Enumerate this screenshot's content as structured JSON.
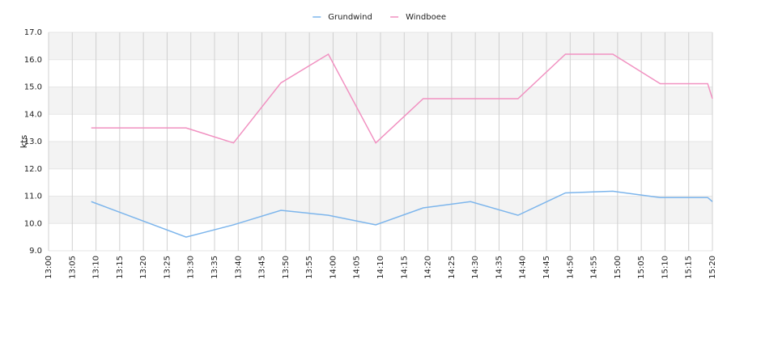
{
  "chart_data": {
    "type": "line",
    "ylabel": "kts",
    "x": [
      "13:09",
      "13:29",
      "13:39",
      "13:49",
      "13:59",
      "14:09",
      "14:19",
      "14:29",
      "14:39",
      "14:49",
      "14:59",
      "15:09",
      "15:19",
      "15:20"
    ],
    "series": [
      {
        "name": "Grundwind",
        "color": "#7cb5ec",
        "values": [
          10.8,
          9.5,
          9.95,
          10.48,
          10.3,
          9.95,
          10.57,
          10.8,
          10.3,
          11.12,
          11.18,
          10.95,
          10.95,
          10.8
        ]
      },
      {
        "name": "Windboee",
        "color": "#f191c1",
        "values": [
          13.5,
          13.5,
          12.95,
          15.15,
          16.2,
          12.95,
          14.57,
          14.57,
          14.57,
          16.2,
          16.2,
          15.12,
          15.12,
          14.57
        ]
      }
    ],
    "xlim": [
      "13:00",
      "15:20"
    ],
    "xticks": [
      "13:00",
      "13:05",
      "13:10",
      "13:15",
      "13:20",
      "13:25",
      "13:30",
      "13:35",
      "13:40",
      "13:45",
      "13:50",
      "13:55",
      "14:00",
      "14:05",
      "14:10",
      "14:15",
      "14:20",
      "14:25",
      "14:30",
      "14:35",
      "14:40",
      "14:45",
      "14:50",
      "14:55",
      "15:00",
      "15:05",
      "15:10",
      "15:15",
      "15:20"
    ],
    "ylim": [
      9,
      17
    ],
    "yticks": [
      {
        "value": 9,
        "label": "9.0"
      },
      {
        "value": 10,
        "label": "10.0"
      },
      {
        "value": 11,
        "label": "11.0"
      },
      {
        "value": 12,
        "label": "12.0"
      },
      {
        "value": 13,
        "label": "13.0"
      },
      {
        "value": 14,
        "label": "14.0"
      },
      {
        "value": 15,
        "label": "15.0"
      },
      {
        "value": 16,
        "label": "16.0"
      },
      {
        "value": 17,
        "label": "17.0"
      }
    ],
    "grid": true,
    "legend": "top"
  }
}
